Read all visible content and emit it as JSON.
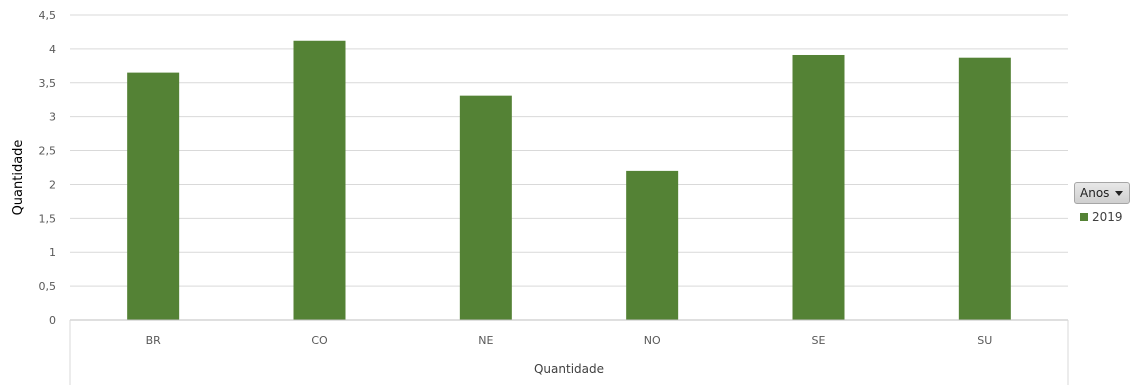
{
  "colors": {
    "bar": "#548235",
    "grid": "#d9d9d9",
    "axis": "#bfbfbf"
  },
  "legend": {
    "filter_label": "Anos",
    "filter_icon": "chevron-down-icon",
    "entries": [
      "2019"
    ]
  },
  "chart_data": {
    "type": "bar",
    "categories": [
      "BR",
      "CO",
      "NE",
      "NO",
      "SE",
      "SU"
    ],
    "series": [
      {
        "name": "2019",
        "values": [
          3.65,
          4.12,
          3.31,
          2.2,
          3.91,
          3.87
        ]
      }
    ],
    "xlabel": "Quantidade",
    "ylabel": "Quantidade",
    "ylim": [
      0,
      4.5
    ],
    "yticks": [
      "0",
      "0,5",
      "1",
      "1,5",
      "2",
      "2,5",
      "3",
      "3,5",
      "4",
      "4,5"
    ],
    "grid": true,
    "legend_position": "right"
  }
}
